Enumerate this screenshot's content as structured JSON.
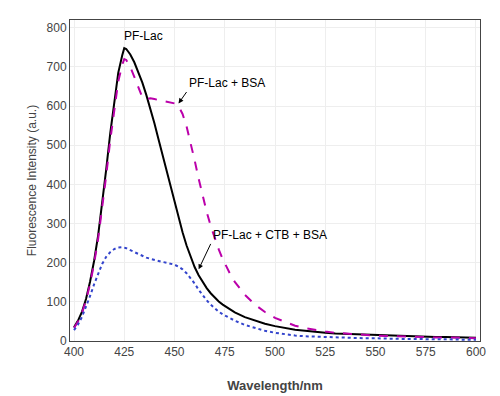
{
  "chart_data": {
    "type": "line",
    "title": "",
    "xlabel": "Wavelength/nm",
    "ylabel": "Fluorescence Intensity (a.u.)",
    "xlim": [
      398,
      602
    ],
    "ylim": [
      0,
      820
    ],
    "xticks": [
      400,
      425,
      450,
      475,
      500,
      525,
      550,
      575,
      600
    ],
    "yticks": [
      0,
      100,
      200,
      300,
      400,
      500,
      600,
      700,
      800
    ],
    "x": [
      400,
      402,
      404,
      406,
      408,
      410,
      412,
      414,
      416,
      418,
      420,
      422,
      424,
      425,
      426,
      428,
      430,
      432,
      434,
      436,
      438,
      440,
      442,
      444,
      446,
      448,
      450,
      452,
      454,
      456,
      458,
      460,
      462,
      464,
      466,
      468,
      470,
      472,
      474,
      476,
      478,
      480,
      485,
      490,
      495,
      500,
      505,
      510,
      515,
      520,
      525,
      530,
      535,
      540,
      545,
      550,
      555,
      560,
      565,
      570,
      575,
      580,
      585,
      590,
      595,
      600
    ],
    "series": [
      {
        "name": "PF-Lac",
        "color": "#000000",
        "line_style": "solid",
        "values": [
          35,
          52,
          75,
          108,
          152,
          205,
          270,
          348,
          438,
          530,
          615,
          685,
          730,
          748,
          746,
          732,
          712,
          688,
          660,
          628,
          593,
          556,
          516,
          476,
          436,
          395,
          355,
          315,
          278,
          244,
          215,
          189,
          168,
          150,
          135,
          122,
          111,
          101,
          93,
          86,
          79,
          73,
          61,
          52,
          44,
          38,
          33,
          29,
          26,
          23,
          21,
          19,
          18,
          17,
          16,
          15,
          14,
          13,
          12,
          12,
          11,
          10,
          10,
          9,
          9,
          8
        ]
      },
      {
        "name": "PF-Lac + BSA",
        "color": "#bb00aa",
        "line_style": "dash",
        "values": [
          33,
          50,
          72,
          104,
          146,
          198,
          261,
          336,
          422,
          512,
          595,
          663,
          706,
          720,
          718,
          700,
          675,
          648,
          622,
          618,
          620,
          618,
          616,
          614,
          612,
          610,
          607,
          600,
          580,
          548,
          508,
          462,
          415,
          371,
          330,
          294,
          262,
          234,
          209,
          187,
          168,
          151,
          118,
          93,
          74,
          59,
          48,
          39,
          33,
          28,
          24,
          21,
          19,
          17,
          16,
          14,
          13,
          12,
          11,
          11,
          10,
          9,
          9,
          8,
          8,
          7
        ]
      },
      {
        "name": "PF-Lac + CTB + BSA",
        "color": "#3344cc",
        "line_style": "dot",
        "values": [
          28,
          42,
          62,
          87,
          115,
          145,
          173,
          197,
          215,
          227,
          235,
          239,
          240,
          239,
          237,
          232,
          227,
          221,
          217,
          213,
          210,
          207,
          205,
          202,
          200,
          198,
          195,
          190,
          183,
          173,
          161,
          147,
          131,
          117,
          104,
          93,
          83,
          75,
          68,
          62,
          57,
          52,
          41,
          33,
          26,
          21,
          17,
          14,
          12,
          11,
          10,
          9,
          8,
          8,
          7,
          7,
          6,
          6,
          5,
          5,
          5,
          4,
          4,
          4,
          3,
          3
        ]
      }
    ],
    "annotations": [
      {
        "text": "PF-Lac",
        "x": 424,
        "y": 755
      },
      {
        "text": "PF-Lac + BSA",
        "x": 456,
        "y": 636,
        "arrow_to": {
          "x": 452,
          "y": 607
        }
      },
      {
        "text": "PF-Lac + CTB + BSA",
        "x": 468,
        "y": 248,
        "arrow_to": {
          "x": 462,
          "y": 183
        }
      }
    ]
  }
}
